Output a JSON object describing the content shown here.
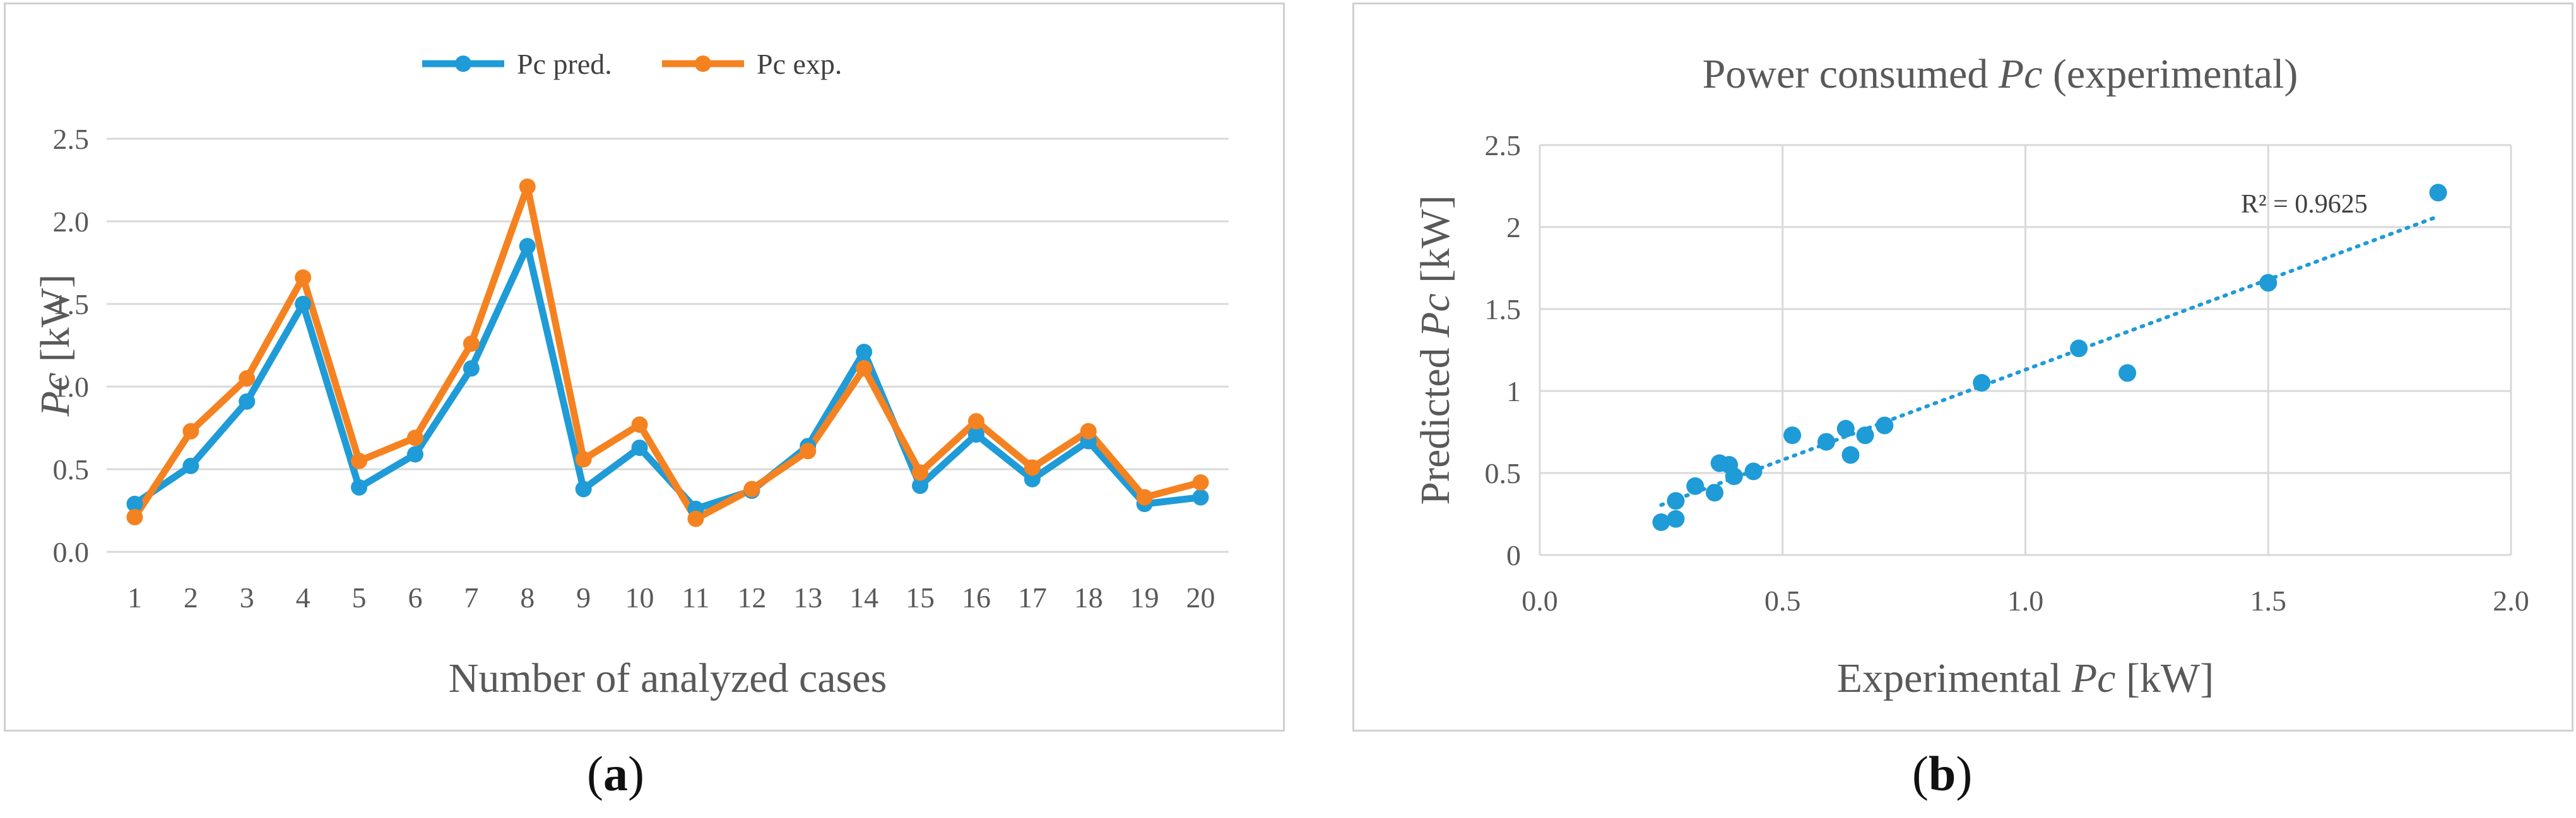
{
  "chart_data": [
    {
      "type": "line",
      "title": "",
      "xlabel": "Number of analyzed cases",
      "ylabel_symbol": "Pc",
      "ylabel_unit": "[kW]",
      "categories": [
        "1",
        "2",
        "3",
        "4",
        "5",
        "6",
        "7",
        "8",
        "9",
        "10",
        "11",
        "12",
        "13",
        "14",
        "15",
        "16",
        "17",
        "18",
        "19",
        "20"
      ],
      "ylim": [
        0,
        2.5
      ],
      "yticks": [
        "0.0",
        "0.5",
        "1.0",
        "1.5",
        "2.0",
        "2.5"
      ],
      "legend_position": "top",
      "series": [
        {
          "name": "Pc pred.",
          "color": "#1f9bd7",
          "values": [
            0.29,
            0.52,
            0.91,
            1.5,
            0.39,
            0.59,
            1.11,
            1.85,
            0.38,
            0.63,
            0.26,
            0.37,
            0.64,
            1.21,
            0.4,
            0.71,
            0.44,
            0.67,
            0.29,
            0.33
          ]
        },
        {
          "name": "Pc exp.",
          "color": "#f58220",
          "values": [
            0.21,
            0.73,
            1.05,
            1.66,
            0.55,
            0.69,
            1.26,
            2.21,
            0.56,
            0.77,
            0.2,
            0.38,
            0.61,
            1.11,
            0.48,
            0.79,
            0.51,
            0.73,
            0.33,
            0.42
          ]
        }
      ],
      "panel_label": "a"
    },
    {
      "type": "scatter",
      "title_prefix": "Power consumed ",
      "title_symbol": "Pc",
      "title_suffix": " (experimental)",
      "xlabel_prefix": "Experimental ",
      "xlabel_symbol": "Pc",
      "xlabel_unit": " [kW]",
      "ylabel_prefix": "Predicted ",
      "ylabel_symbol": "Pc",
      "ylabel_unit": " [kW]",
      "xlim": [
        0,
        2.0
      ],
      "ylim": [
        0,
        2.5
      ],
      "xticks": [
        "0.0",
        "0.5",
        "1.0",
        "1.5",
        "2.0"
      ],
      "yticks": [
        "0",
        "0.5",
        "1",
        "1.5",
        "2",
        "2.5"
      ],
      "color": "#1f9bd7",
      "points": [
        {
          "x": 0.25,
          "y": 0.2
        },
        {
          "x": 0.28,
          "y": 0.22
        },
        {
          "x": 0.28,
          "y": 0.33
        },
        {
          "x": 0.32,
          "y": 0.42
        },
        {
          "x": 0.36,
          "y": 0.38
        },
        {
          "x": 0.37,
          "y": 0.56
        },
        {
          "x": 0.39,
          "y": 0.55
        },
        {
          "x": 0.4,
          "y": 0.48
        },
        {
          "x": 0.44,
          "y": 0.51
        },
        {
          "x": 0.52,
          "y": 0.73
        },
        {
          "x": 0.59,
          "y": 0.69
        },
        {
          "x": 0.63,
          "y": 0.77
        },
        {
          "x": 0.64,
          "y": 0.61
        },
        {
          "x": 0.67,
          "y": 0.73
        },
        {
          "x": 0.71,
          "y": 0.79
        },
        {
          "x": 0.91,
          "y": 1.05
        },
        {
          "x": 1.11,
          "y": 1.26
        },
        {
          "x": 1.21,
          "y": 1.11
        },
        {
          "x": 1.5,
          "y": 1.66
        },
        {
          "x": 1.85,
          "y": 2.21
        }
      ],
      "trendline": {
        "x_start": 0.25,
        "x_end": 1.85,
        "slope": 1.1,
        "intercept": 0.03
      },
      "annotation": "R² = 0.9625",
      "panel_label": "b"
    }
  ]
}
